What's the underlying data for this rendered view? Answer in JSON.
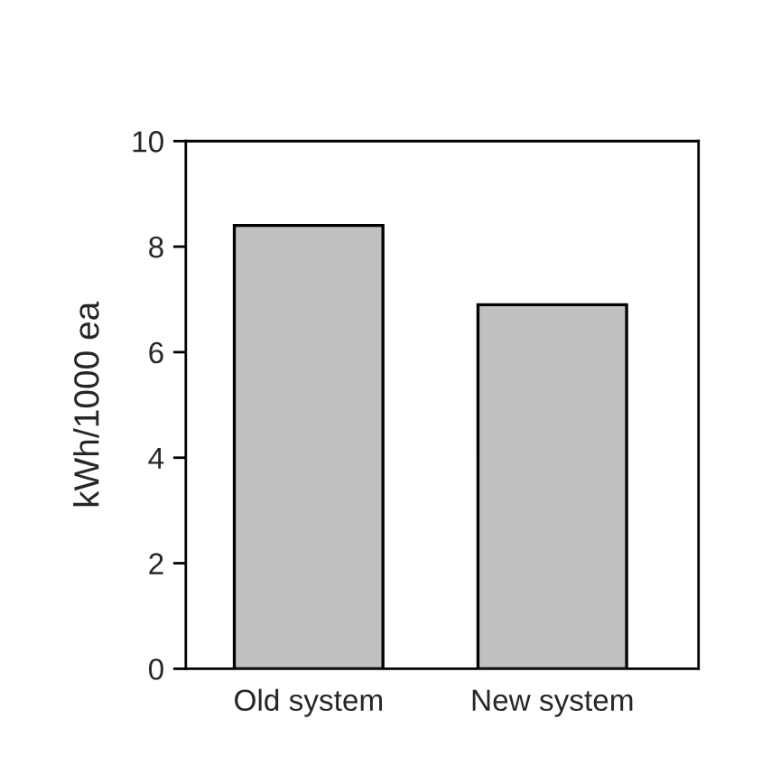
{
  "chart_data": {
    "type": "bar",
    "categories": [
      "Old system",
      "New system"
    ],
    "values": [
      8.4,
      6.9
    ],
    "color": "#c0c0c0",
    "ylabel": "kWh/1000 ea",
    "ylim": [
      0,
      10
    ],
    "yticks": [
      0,
      2,
      4,
      6,
      8,
      10
    ],
    "grid": false
  }
}
